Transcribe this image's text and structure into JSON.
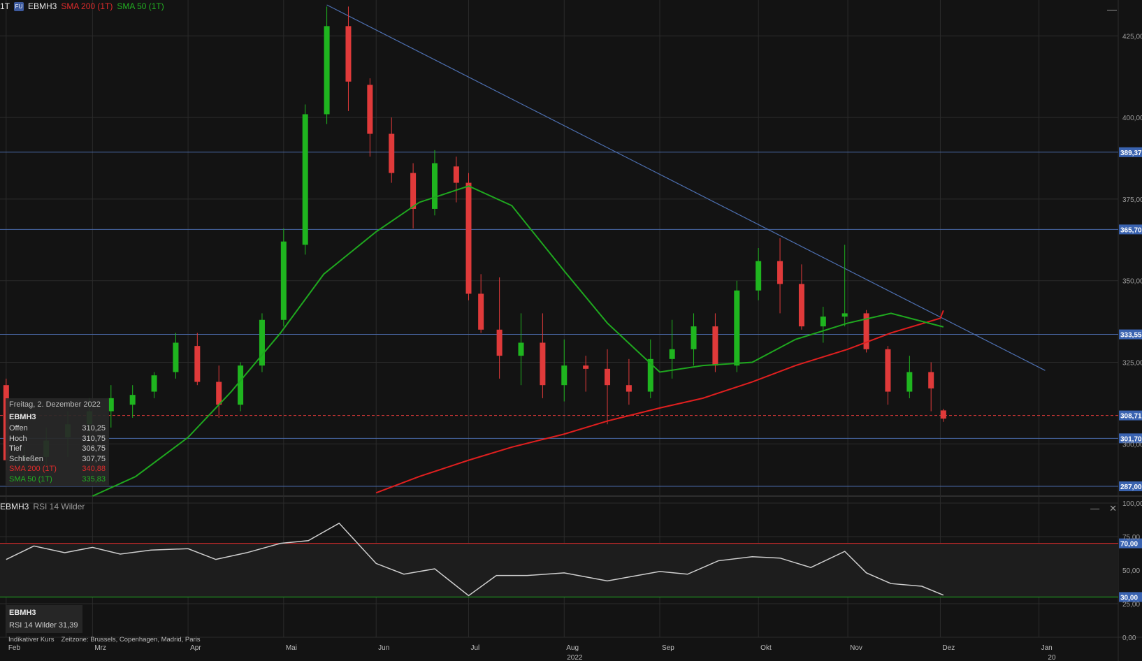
{
  "header": {
    "timeframe": "1T",
    "badge": "FU",
    "symbol": "EBMH3",
    "sma200_label": "SMA 200 (1T)",
    "sma50_label": "SMA 50 (1T)"
  },
  "info_box": {
    "date": "Freitag, 2. Dezember 2022",
    "symbol": "EBMH3",
    "rows": [
      {
        "label": "Offen",
        "value": "310,25"
      },
      {
        "label": "Hoch",
        "value": "310,75"
      },
      {
        "label": "Tief",
        "value": "306,75"
      },
      {
        "label": "Schließen",
        "value": "307,75"
      },
      {
        "label": "SMA 200 (1T)",
        "value": "340,88"
      },
      {
        "label": "SMA 50 (1T)",
        "value": "335,83"
      }
    ]
  },
  "rsi_panel": {
    "symbol": "EBMH3",
    "indicator": "RSI 14 Wilder",
    "info_label": "RSI 14 Wilder 31,39"
  },
  "footer": {
    "note": "Indikativer Kurs",
    "timezone": "Zeitzone: Brussels, Copenhagen, Madrid, Paris"
  },
  "colors": {
    "background": "#131313",
    "up": "#1fb51f",
    "down": "#e03a3a",
    "sma200": "#e01f1f",
    "sma50": "#1fa81f",
    "trendline": "#4d6fb0",
    "level_line": "#4a6aa8",
    "label_bg": "#3a63b0"
  },
  "chart_data": [
    {
      "type": "candlestick",
      "title": "EBMH3",
      "ylim": [
        284,
        436
      ],
      "y_ticks": [
        {
          "value": 300,
          "label": "300,00"
        },
        {
          "value": 325,
          "label": "325,00"
        },
        {
          "value": 350,
          "label": "350,00"
        },
        {
          "value": 375,
          "label": "375,00"
        },
        {
          "value": 400,
          "label": "400,00"
        },
        {
          "value": 425,
          "label": "425,00"
        }
      ],
      "levels": [
        {
          "value": 389.37,
          "label": "389,37"
        },
        {
          "value": 365.7,
          "label": "365,70"
        },
        {
          "value": 333.55,
          "label": "333,55"
        },
        {
          "value": 301.7,
          "label": "301,70"
        },
        {
          "value": 287.0,
          "label": "287,00"
        }
      ],
      "last_price": {
        "value": 308.71,
        "label": "308,71"
      },
      "trendline": {
        "from": {
          "date": "2022-05-16",
          "value": 434.5
        },
        "to": {
          "date": "2023-01-04",
          "value": 322.5
        }
      },
      "x_labels": [
        {
          "date": "2022-02-01",
          "label": "Feb"
        },
        {
          "date": "2022-03-01",
          "label": "Mrz"
        },
        {
          "date": "2022-04-01",
          "label": "Apr"
        },
        {
          "date": "2022-05-02",
          "label": "Mai"
        },
        {
          "date": "2022-06-01",
          "label": "Jun"
        },
        {
          "date": "2022-07-01",
          "label": "Jul"
        },
        {
          "date": "2022-08-01",
          "label": "Aug"
        },
        {
          "date": "2022-09-01",
          "label": "Sep"
        },
        {
          "date": "2022-10-03",
          "label": "Okt"
        },
        {
          "date": "2022-11-01",
          "label": "Nov"
        },
        {
          "date": "2022-12-01",
          "label": "Dez"
        },
        {
          "date": "2023-01-02",
          "label": "Jan"
        }
      ],
      "year_labels": [
        {
          "date": "2022-08-01",
          "label": "2022"
        },
        {
          "date": "2023-01-04",
          "label": "20"
        }
      ],
      "series": [
        {
          "name": "EBMH3",
          "ohlc": [
            [
              "2022-02-01",
              318,
              320,
              292,
              295
            ],
            [
              "2022-02-07",
              296,
              299,
              289,
              296
            ],
            [
              "2022-02-14",
              296,
              305,
              293,
              301
            ],
            [
              "2022-02-21",
              302,
              310,
              296,
              306
            ],
            [
              "2022-02-28",
              306,
              314,
              302,
              310
            ],
            [
              "2022-03-07",
              310,
              318,
              305,
              314
            ],
            [
              "2022-03-14",
              312,
              318,
              308,
              315
            ],
            [
              "2022-03-21",
              316,
              322,
              314,
              321
            ],
            [
              "2022-03-28",
              322,
              334,
              320,
              331
            ],
            [
              "2022-04-04",
              330,
              334,
              318,
              319
            ],
            [
              "2022-04-11",
              319,
              324,
              308,
              312
            ],
            [
              "2022-04-18",
              312,
              325,
              310,
              324
            ],
            [
              "2022-04-25",
              324,
              340,
              322,
              338
            ],
            [
              "2022-05-02",
              338,
              366,
              336,
              362
            ],
            [
              "2022-05-09",
              361,
              404,
              358,
              401
            ],
            [
              "2022-05-16",
              401,
              434,
              398,
              428
            ],
            [
              "2022-05-23",
              428,
              434,
              402,
              411
            ],
            [
              "2022-05-30",
              410,
              412,
              388,
              395
            ],
            [
              "2022-06-06",
              395,
              400,
              380,
              383
            ],
            [
              "2022-06-13",
              383,
              386,
              366,
              372
            ],
            [
              "2022-06-20",
              372,
              390,
              370,
              386
            ],
            [
              "2022-06-27",
              385,
              388,
              374,
              380
            ],
            [
              "2022-07-01",
              380,
              383,
              344,
              346
            ],
            [
              "2022-07-05",
              346,
              352,
              334,
              335
            ],
            [
              "2022-07-11",
              335,
              351,
              320,
              327
            ],
            [
              "2022-07-18",
              327,
              340,
              318,
              331
            ],
            [
              "2022-07-25",
              331,
              340,
              314,
              318
            ],
            [
              "2022-08-01",
              318,
              332,
              313,
              324
            ],
            [
              "2022-08-08",
              324,
              327,
              316,
              323
            ],
            [
              "2022-08-15",
              323,
              329,
              306,
              318
            ],
            [
              "2022-08-22",
              318,
              326,
              312,
              316
            ],
            [
              "2022-08-29",
              316,
              332,
              314,
              326
            ],
            [
              "2022-09-05",
              326,
              338,
              320,
              329
            ],
            [
              "2022-09-12",
              329,
              340,
              324,
              336
            ],
            [
              "2022-09-19",
              336,
              340,
              322,
              324
            ],
            [
              "2022-09-26",
              324,
              350,
              322,
              347
            ],
            [
              "2022-10-03",
              347,
              360,
              344,
              356
            ],
            [
              "2022-10-10",
              356,
              363,
              340,
              349
            ],
            [
              "2022-10-17",
              349,
              355,
              335,
              336
            ],
            [
              "2022-10-24",
              336,
              342,
              331,
              339
            ],
            [
              "2022-10-31",
              339,
              361,
              336,
              340
            ],
            [
              "2022-11-07",
              340,
              341,
              328,
              329
            ],
            [
              "2022-11-14",
              329,
              330,
              312,
              316
            ],
            [
              "2022-11-21",
              316,
              327,
              314,
              322
            ],
            [
              "2022-11-28",
              322,
              325,
              310,
              317
            ],
            [
              "2022-12-02",
              310.25,
              310.75,
              306.75,
              307.75
            ]
          ]
        },
        {
          "name": "SMA 200 (1T)",
          "values": [
            [
              "2022-06-01",
              285
            ],
            [
              "2022-06-15",
              290
            ],
            [
              "2022-07-01",
              295
            ],
            [
              "2022-07-15",
              299
            ],
            [
              "2022-08-01",
              303
            ],
            [
              "2022-08-15",
              307
            ],
            [
              "2022-09-01",
              311
            ],
            [
              "2022-09-15",
              314
            ],
            [
              "2022-10-01",
              319
            ],
            [
              "2022-10-15",
              324
            ],
            [
              "2022-11-01",
              329
            ],
            [
              "2022-11-15",
              334
            ],
            [
              "2022-12-01",
              338.5
            ],
            [
              "2022-12-02",
              340.88
            ]
          ]
        },
        {
          "name": "SMA 50 (1T)",
          "values": [
            [
              "2022-03-01",
              284
            ],
            [
              "2022-03-15",
              290
            ],
            [
              "2022-04-01",
              302
            ],
            [
              "2022-04-15",
              316
            ],
            [
              "2022-05-01",
              334
            ],
            [
              "2022-05-15",
              352
            ],
            [
              "2022-06-01",
              365
            ],
            [
              "2022-06-15",
              374
            ],
            [
              "2022-07-01",
              379
            ],
            [
              "2022-07-15",
              373
            ],
            [
              "2022-08-01",
              353
            ],
            [
              "2022-08-15",
              337
            ],
            [
              "2022-09-01",
              322
            ],
            [
              "2022-09-15",
              324
            ],
            [
              "2022-10-01",
              325
            ],
            [
              "2022-10-15",
              332
            ],
            [
              "2022-11-01",
              337
            ],
            [
              "2022-11-15",
              340
            ],
            [
              "2022-12-02",
              335.83
            ]
          ]
        }
      ]
    },
    {
      "type": "line",
      "title": "RSI 14 Wilder",
      "ylim": [
        0,
        100
      ],
      "y_ticks": [
        {
          "value": 0,
          "label": "0,00"
        },
        {
          "value": 25,
          "label": "25,00"
        },
        {
          "value": 50,
          "label": "50,00"
        },
        {
          "value": 75,
          "label": "75,00"
        },
        {
          "value": 100,
          "label": "100,00"
        }
      ],
      "levels": [
        {
          "value": 70,
          "label": "70,00",
          "color": "#e02b2b"
        },
        {
          "value": 30,
          "label": "30,00",
          "color": "#22b022"
        }
      ],
      "series": [
        {
          "name": "RSI 14 Wilder",
          "values": [
            [
              "2022-02-01",
              58
            ],
            [
              "2022-02-10",
              68
            ],
            [
              "2022-02-20",
              63
            ],
            [
              "2022-03-01",
              67
            ],
            [
              "2022-03-10",
              62
            ],
            [
              "2022-03-20",
              65
            ],
            [
              "2022-04-01",
              66
            ],
            [
              "2022-04-10",
              58
            ],
            [
              "2022-04-20",
              63
            ],
            [
              "2022-05-01",
              70
            ],
            [
              "2022-05-10",
              72
            ],
            [
              "2022-05-20",
              85
            ],
            [
              "2022-05-26",
              70
            ],
            [
              "2022-06-01",
              55
            ],
            [
              "2022-06-10",
              47
            ],
            [
              "2022-06-20",
              51
            ],
            [
              "2022-07-01",
              31
            ],
            [
              "2022-07-10",
              46
            ],
            [
              "2022-07-20",
              46
            ],
            [
              "2022-08-01",
              48
            ],
            [
              "2022-08-15",
              42
            ],
            [
              "2022-09-01",
              49
            ],
            [
              "2022-09-10",
              47
            ],
            [
              "2022-09-20",
              57
            ],
            [
              "2022-10-01",
              60
            ],
            [
              "2022-10-10",
              59
            ],
            [
              "2022-10-20",
              52
            ],
            [
              "2022-10-31",
              64
            ],
            [
              "2022-11-07",
              48
            ],
            [
              "2022-11-15",
              40
            ],
            [
              "2022-11-25",
              38
            ],
            [
              "2022-12-02",
              31.39
            ]
          ]
        }
      ]
    }
  ]
}
